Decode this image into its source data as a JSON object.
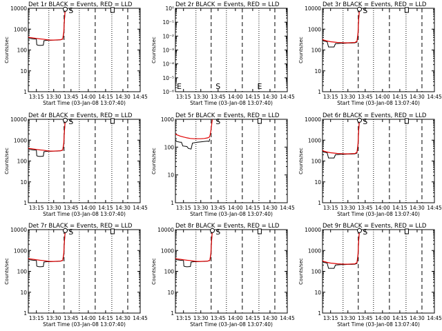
{
  "chart_data": [
    {
      "type": "line",
      "title": "Det 1r BLACK = Events, RED = LLD",
      "xlabel": "Start Time (03-Jan-08 13:07:40)",
      "ylabel": "Counts/sec",
      "yscale": "log",
      "ylim": [
        1,
        10000
      ],
      "y_ticks": [
        "1",
        "10",
        "100",
        "1000",
        "10000"
      ],
      "x_ticks": [
        "13:15",
        "13:30",
        "13:45",
        "14:00",
        "14:15",
        "14:30",
        "14:45"
      ],
      "markers": [
        "S",
        "E"
      ],
      "has_data": true,
      "data_variant": "a"
    },
    {
      "type": "line",
      "title": "Det 2r BLACK = Events, RED = LLD",
      "xlabel": "Start Time (03-Jan-08 13:07:40)",
      "ylabel": "Counts/sec",
      "yscale": "log",
      "ylim": [
        1,
        1e-06
      ],
      "y_ticks": [
        "10⁻⁶",
        "10⁻⁵",
        "10⁻⁴",
        "10⁻³",
        "10⁻²",
        "10⁻¹",
        "10⁰"
      ],
      "x_ticks": [
        "13:15",
        "13:30",
        "13:45",
        "14:00",
        "14:15",
        "14:30",
        "14:45"
      ],
      "markers": [
        "S",
        "E"
      ],
      "has_data": false,
      "data_variant": "none"
    },
    {
      "type": "line",
      "title": "Det 3r BLACK = Events, RED = LLD",
      "xlabel": "Start Time (03-Jan-08 13:07:40)",
      "ylabel": "Counts/sec",
      "yscale": "log",
      "ylim": [
        1,
        10000
      ],
      "y_ticks": [
        "1",
        "10",
        "100",
        "1000",
        "10000"
      ],
      "x_ticks": [
        "13:15",
        "13:30",
        "13:45",
        "14:00",
        "14:15",
        "14:30",
        "14:45"
      ],
      "markers": [
        "S",
        "E"
      ],
      "has_data": true,
      "data_variant": "b"
    },
    {
      "type": "line",
      "title": "Det 4r BLACK = Events, RED = LLD",
      "xlabel": "Start Time (03-Jan-08 13:07:40)",
      "ylabel": "Counts/sec",
      "yscale": "log",
      "ylim": [
        1,
        10000
      ],
      "y_ticks": [
        "1",
        "10",
        "100",
        "1000",
        "10000"
      ],
      "x_ticks": [
        "13:15",
        "13:30",
        "13:45",
        "14:00",
        "14:15",
        "14:30",
        "14:45"
      ],
      "markers": [
        "S",
        "E"
      ],
      "has_data": true,
      "data_variant": "a"
    },
    {
      "type": "line",
      "title": "Det 5r BLACK = Events, RED = LLD",
      "xlabel": "Start Time (03-Jan-08 13:07:40)",
      "ylabel": "Counts/sec",
      "yscale": "log",
      "ylim": [
        1,
        1000
      ],
      "y_ticks": [
        "1",
        "10",
        "100",
        "1000"
      ],
      "x_ticks": [
        "13:15",
        "13:30",
        "13:45",
        "14:00",
        "14:15",
        "14:30",
        "14:45"
      ],
      "markers": [
        "S",
        "E"
      ],
      "has_data": true,
      "data_variant": "c"
    },
    {
      "type": "line",
      "title": "Det 6r BLACK = Events, RED = LLD",
      "xlabel": "Start Time (03-Jan-08 13:07:40)",
      "ylabel": "Counts/sec",
      "yscale": "log",
      "ylim": [
        1,
        10000
      ],
      "y_ticks": [
        "1",
        "10",
        "100",
        "1000",
        "10000"
      ],
      "x_ticks": [
        "13:15",
        "13:30",
        "13:45",
        "14:00",
        "14:15",
        "14:30",
        "14:45"
      ],
      "markers": [
        "S",
        "E"
      ],
      "has_data": true,
      "data_variant": "b"
    },
    {
      "type": "line",
      "title": "Det 7r BLACK = Events, RED = LLD",
      "xlabel": "Start Time (03-Jan-08 13:07:40)",
      "ylabel": "Counts/sec",
      "yscale": "log",
      "ylim": [
        1,
        10000
      ],
      "y_ticks": [
        "1",
        "10",
        "100",
        "1000",
        "10000"
      ],
      "x_ticks": [
        "13:15",
        "13:30",
        "13:45",
        "14:00",
        "14:15",
        "14:30",
        "14:45"
      ],
      "markers": [
        "S",
        "E"
      ],
      "has_data": true,
      "data_variant": "a"
    },
    {
      "type": "line",
      "title": "Det 8r BLACK = Events, RED = LLD",
      "xlabel": "Start Time (03-Jan-08 13:07:40)",
      "ylabel": "Counts/sec",
      "yscale": "log",
      "ylim": [
        1,
        10000
      ],
      "y_ticks": [
        "1",
        "10",
        "100",
        "1000",
        "10000"
      ],
      "x_ticks": [
        "13:15",
        "13:30",
        "13:45",
        "14:00",
        "14:15",
        "14:30",
        "14:45"
      ],
      "markers": [
        "S",
        "E"
      ],
      "has_data": true,
      "data_variant": "a"
    },
    {
      "type": "line",
      "title": "Det 9r BLACK = Events, RED = LLD",
      "xlabel": "Start Time (03-Jan-08 13:07:40)",
      "ylabel": "Counts/sec",
      "yscale": "log",
      "ylim": [
        1,
        10000
      ],
      "y_ticks": [
        "1",
        "10",
        "100",
        "1000",
        "10000"
      ],
      "x_ticks": [
        "13:15",
        "13:30",
        "13:45",
        "14:00",
        "14:15",
        "14:30",
        "14:45"
      ],
      "markers": [
        "S",
        "E"
      ],
      "has_data": true,
      "data_variant": "b"
    }
  ],
  "time_axis": {
    "range_hours": [
      13.1333,
      14.75
    ],
    "tick_hours": [
      13.25,
      13.5,
      13.75,
      14.0,
      14.25,
      14.5,
      14.75
    ],
    "dotted_hours": [
      13.43,
      13.87,
      14.34
    ],
    "dashed_hours": [
      13.65,
      14.1,
      14.57
    ],
    "marker_S_hour": 13.75,
    "marker_E_hour": 14.35
  },
  "series_shapes": {
    "a": {
      "events": [
        [
          13.1333,
          400
        ],
        [
          13.15,
          360
        ],
        [
          13.2,
          340
        ],
        [
          13.25,
          330
        ],
        [
          13.255,
          180
        ],
        [
          13.27,
          170
        ],
        [
          13.3,
          165
        ],
        [
          13.35,
          170
        ],
        [
          13.36,
          280
        ],
        [
          13.4,
          290
        ],
        [
          13.45,
          290
        ],
        [
          13.5,
          300
        ],
        [
          13.55,
          300
        ],
        [
          13.6,
          310
        ],
        [
          13.63,
          330
        ],
        [
          13.645,
          600
        ],
        [
          13.655,
          2500
        ],
        [
          13.667,
          9000
        ]
      ],
      "lld": [
        [
          13.1333,
          420
        ],
        [
          13.15,
          400
        ],
        [
          13.2,
          380
        ],
        [
          13.25,
          360
        ],
        [
          13.3,
          340
        ],
        [
          13.35,
          330
        ],
        [
          13.4,
          310
        ],
        [
          13.45,
          300
        ],
        [
          13.5,
          300
        ],
        [
          13.55,
          305
        ],
        [
          13.6,
          310
        ],
        [
          13.63,
          340
        ],
        [
          13.645,
          700
        ],
        [
          13.655,
          3000
        ],
        [
          13.667,
          9500
        ]
      ],
      "circle": [
        13.667,
        9000
      ]
    },
    "b": {
      "events": [
        [
          13.1333,
          300
        ],
        [
          13.15,
          270
        ],
        [
          13.2,
          250
        ],
        [
          13.22,
          140
        ],
        [
          13.3,
          140
        ],
        [
          13.32,
          200
        ],
        [
          13.4,
          210
        ],
        [
          13.45,
          210
        ],
        [
          13.5,
          215
        ],
        [
          13.55,
          215
        ],
        [
          13.6,
          220
        ],
        [
          13.63,
          240
        ],
        [
          13.645,
          500
        ],
        [
          13.655,
          2500
        ],
        [
          13.667,
          9000
        ]
      ],
      "lld": [
        [
          13.1333,
          330
        ],
        [
          13.15,
          300
        ],
        [
          13.2,
          270
        ],
        [
          13.25,
          250
        ],
        [
          13.3,
          240
        ],
        [
          13.35,
          230
        ],
        [
          13.4,
          225
        ],
        [
          13.45,
          220
        ],
        [
          13.5,
          220
        ],
        [
          13.55,
          225
        ],
        [
          13.6,
          230
        ],
        [
          13.63,
          260
        ],
        [
          13.645,
          600
        ],
        [
          13.655,
          3000
        ],
        [
          13.667,
          9500
        ]
      ],
      "circle": [
        13.667,
        9000
      ]
    },
    "c": {
      "events": [
        [
          13.1333,
          180
        ],
        [
          13.15,
          160
        ],
        [
          13.2,
          150
        ],
        [
          13.22,
          150
        ],
        [
          13.24,
          110
        ],
        [
          13.3,
          105
        ],
        [
          13.32,
          90
        ],
        [
          13.36,
          85
        ],
        [
          13.38,
          140
        ],
        [
          13.45,
          150
        ],
        [
          13.5,
          155
        ],
        [
          13.55,
          160
        ],
        [
          13.6,
          165
        ],
        [
          13.62,
          160
        ],
        [
          13.63,
          200
        ]
      ],
      "lld": [
        [
          13.1333,
          300
        ],
        [
          13.15,
          280
        ],
        [
          13.2,
          250
        ],
        [
          13.25,
          230
        ],
        [
          13.3,
          215
        ],
        [
          13.35,
          205
        ],
        [
          13.4,
          200
        ],
        [
          13.45,
          200
        ],
        [
          13.5,
          200
        ],
        [
          13.55,
          205
        ],
        [
          13.6,
          215
        ],
        [
          13.625,
          230
        ],
        [
          13.635,
          280
        ],
        [
          13.645,
          380
        ],
        [
          13.655,
          600
        ],
        [
          13.667,
          1100
        ]
      ],
      "circle": null
    }
  }
}
